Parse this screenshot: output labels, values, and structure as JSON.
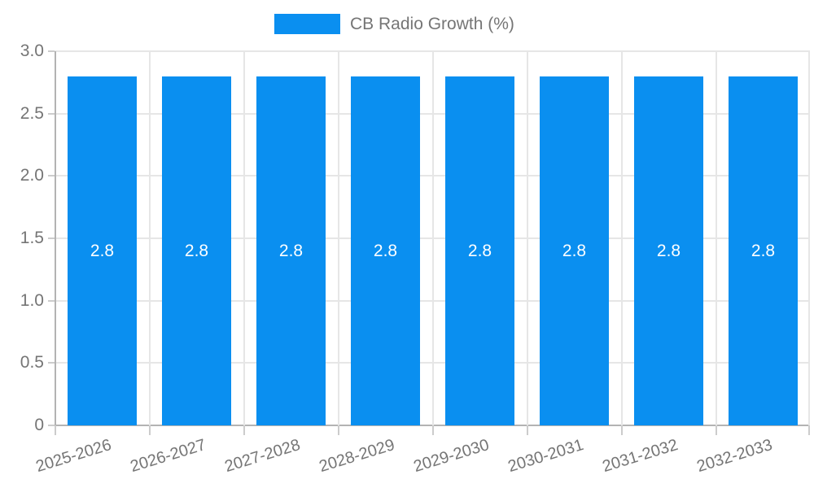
{
  "legend": {
    "label": "CB Radio Growth (%)"
  },
  "colors": {
    "bar": "#0a8ff0",
    "grid": "#e6e6e6",
    "axis": "#b3b3b3",
    "tick": "#cccccc",
    "text": "#757575",
    "value_label": "#ffffff",
    "background": "#ffffff"
  },
  "chart_data": {
    "type": "bar",
    "title": "CB Radio Growth (%)",
    "categories": [
      "2025-2026",
      "2026-2027",
      "2027-2028",
      "2028-2029",
      "2029-2030",
      "2030-2031",
      "2031-2032",
      "2032-2033"
    ],
    "series": [
      {
        "name": "CB Radio Growth (%)",
        "values": [
          2.8,
          2.8,
          2.8,
          2.8,
          2.8,
          2.8,
          2.8,
          2.8
        ]
      }
    ],
    "value_labels": [
      "2.8",
      "2.8",
      "2.8",
      "2.8",
      "2.8",
      "2.8",
      "2.8",
      "2.8"
    ],
    "xlabel": "",
    "ylabel": "",
    "ylim": [
      0,
      3
    ],
    "yticks": [
      0,
      0.5,
      1,
      1.5,
      2,
      2.5,
      3
    ],
    "ytick_labels": [
      "0",
      "0.5",
      "1.0",
      "1.5",
      "2.0",
      "2.5",
      "3.0"
    ],
    "grid": "on",
    "legend_position": "top-center",
    "xtick_rotation_deg": -17
  }
}
